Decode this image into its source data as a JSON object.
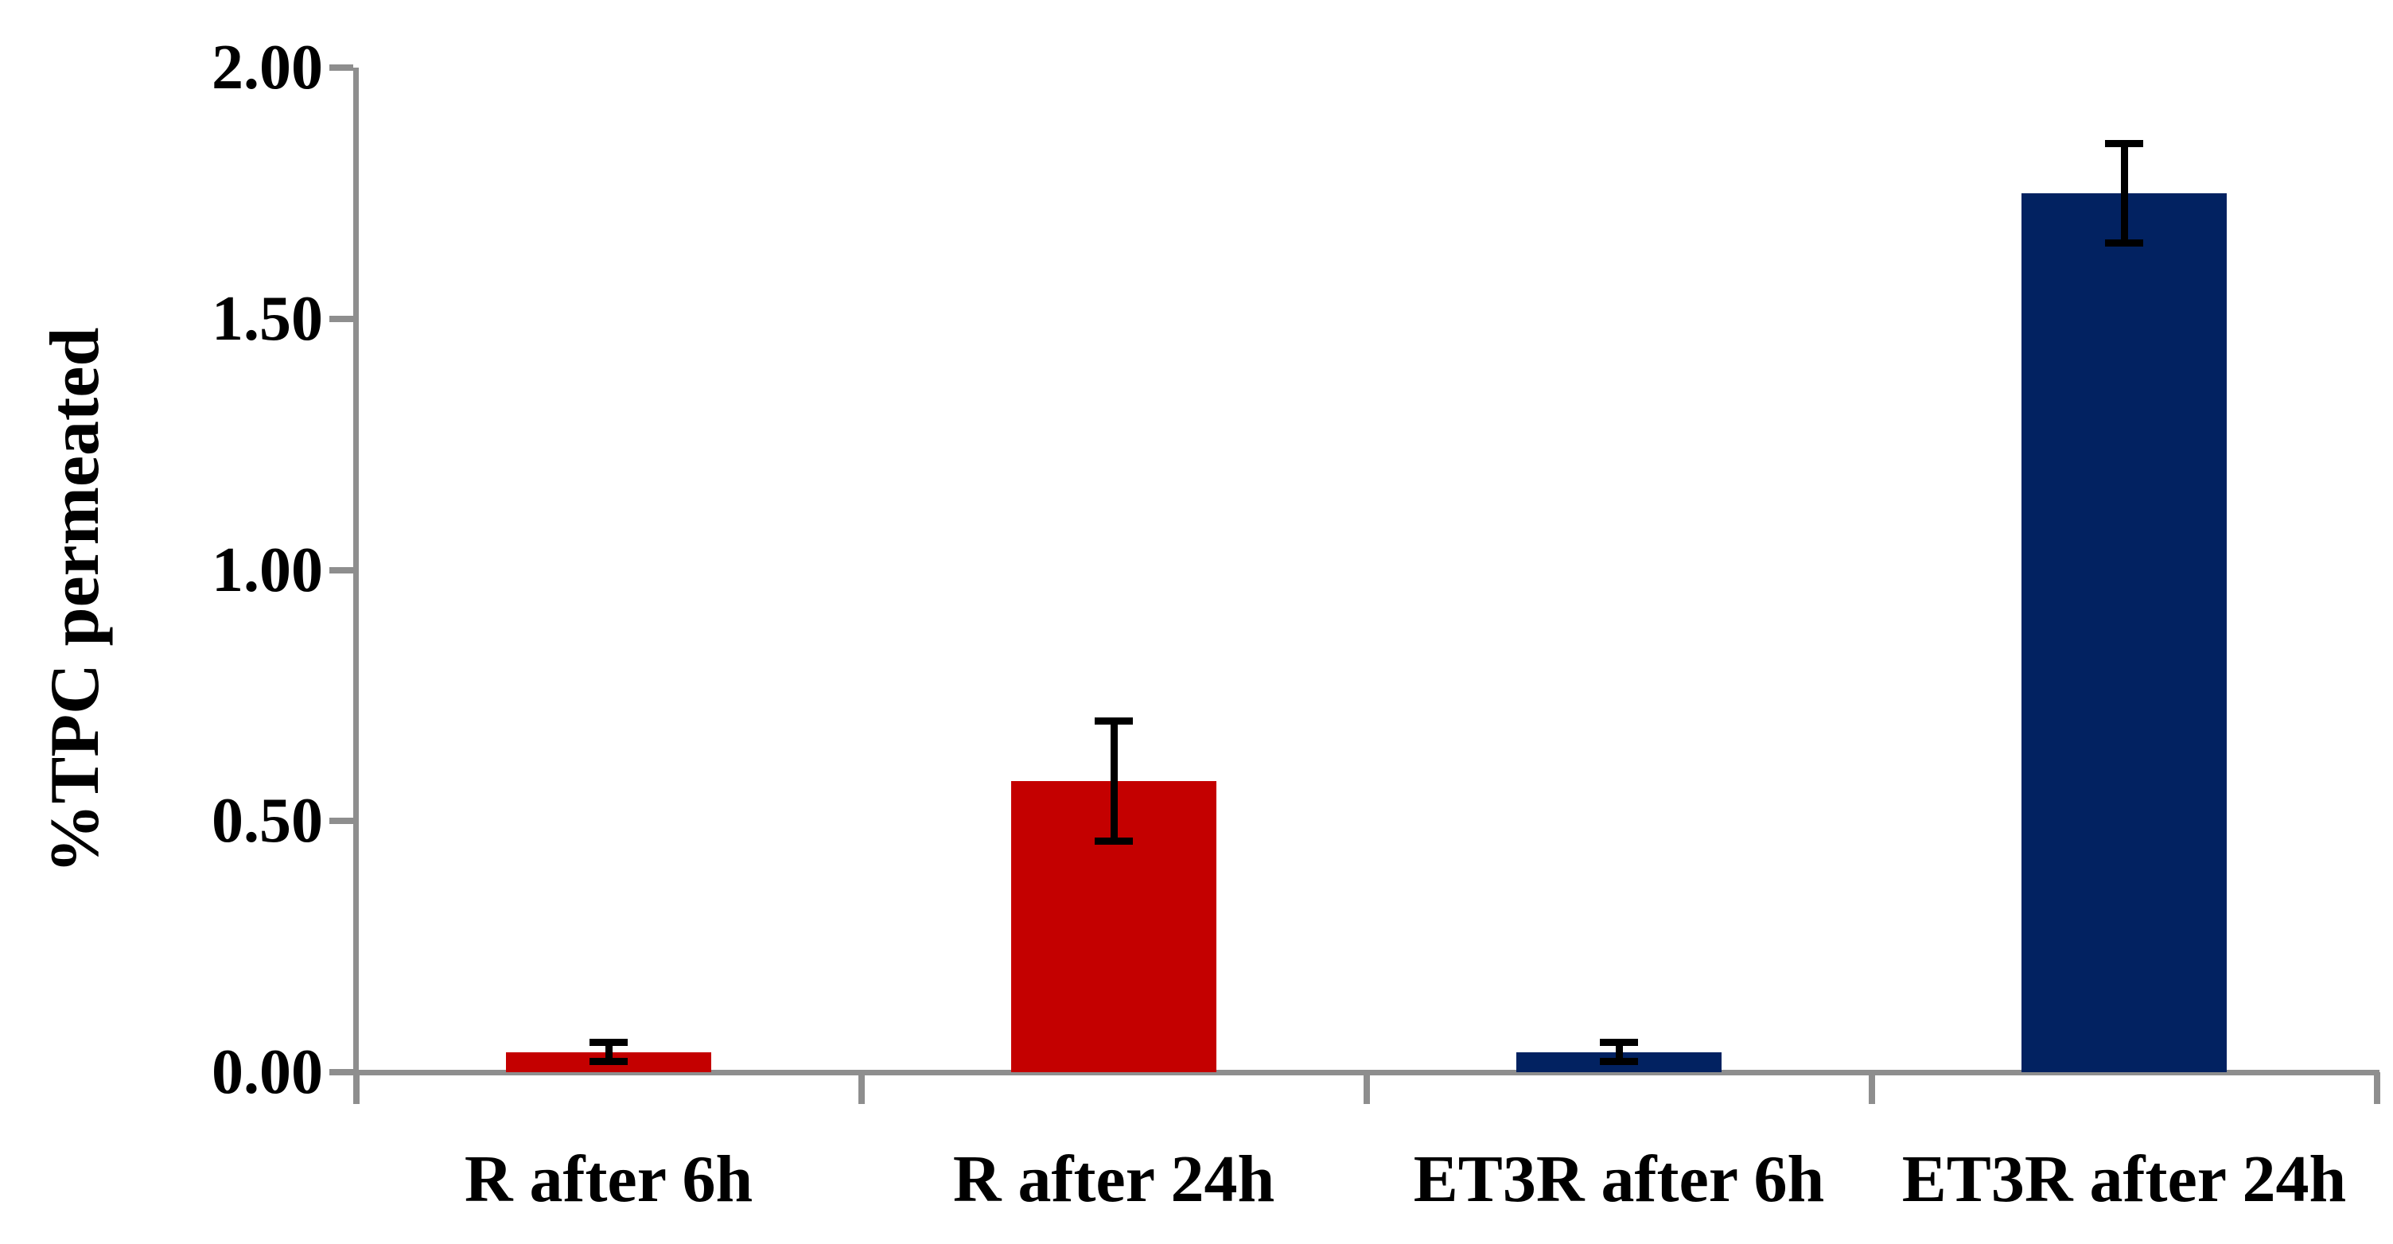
{
  "figure": {
    "background": "#ffffff"
  },
  "chart_data": {
    "type": "bar",
    "title": "",
    "ylabel": "%TPC permeated",
    "xlabel": "",
    "categories": [
      "R after 6h",
      "R after 24h",
      "ET3R after 6h",
      "ET3R after 24h"
    ],
    "values": [
      0.04,
      0.58,
      0.04,
      1.75
    ],
    "error_bars": [
      0.02,
      0.12,
      0.02,
      0.1
    ],
    "bar_colors": [
      "#c40000",
      "#c40000",
      "#022261",
      "#022261"
    ],
    "y_ticks": [
      "0.00",
      "0.50",
      "1.00",
      "1.50",
      "2.00"
    ],
    "ylim": [
      0,
      2
    ],
    "grid": "off",
    "legend": "none",
    "axis_color": "#8e8e8e",
    "error_bar_color": "#000000",
    "text_color": "#000000"
  }
}
